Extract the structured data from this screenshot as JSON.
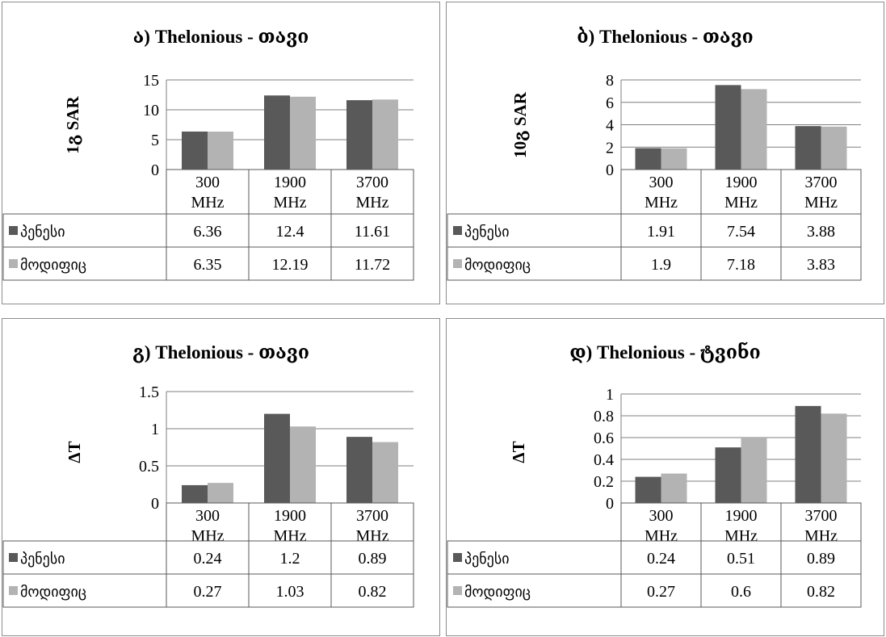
{
  "colors": {
    "series1": "#595959",
    "series2": "#b3b3b3",
    "grid": "#7f7f7f"
  },
  "chart_data": [
    {
      "type": "bar",
      "title": "ა) Thelonious - თავი",
      "ylabel": "1გ SAR",
      "ylim": [
        0,
        15
      ],
      "yticks": [
        "0",
        "5",
        "10",
        "15"
      ],
      "categories": [
        "300 MHz",
        "1900 MHz",
        "3700 MHz"
      ],
      "category_lines": [
        [
          "300",
          "MHz"
        ],
        [
          "1900",
          "MHz"
        ],
        [
          "3700",
          "MHz"
        ]
      ],
      "series": [
        {
          "name": "პენესი",
          "values": [
            6.36,
            12.4,
            11.61
          ],
          "labels": [
            "6.36",
            "12.4",
            "11.61"
          ]
        },
        {
          "name": "მოდიფიც",
          "values": [
            6.35,
            12.19,
            11.72
          ],
          "labels": [
            "6.35",
            "12.19",
            "11.72"
          ]
        }
      ],
      "grid": true
    },
    {
      "type": "bar",
      "title": "ბ) Thelonious - თავი",
      "ylabel": "10გ SAR",
      "ylim": [
        0,
        8
      ],
      "yticks": [
        "0",
        "2",
        "4",
        "6",
        "8"
      ],
      "categories": [
        "300 MHz",
        "1900 MHz",
        "3700 MHz"
      ],
      "category_lines": [
        [
          "300",
          "MHz"
        ],
        [
          "1900",
          "MHz"
        ],
        [
          "3700",
          "MHz"
        ]
      ],
      "series": [
        {
          "name": "პენესი",
          "values": [
            1.91,
            7.54,
            3.88
          ],
          "labels": [
            "1.91",
            "7.54",
            "3.88"
          ]
        },
        {
          "name": "მოდიფიც",
          "values": [
            1.9,
            7.18,
            3.83
          ],
          "labels": [
            "1.9",
            "7.18",
            "3.83"
          ]
        }
      ],
      "grid": true
    },
    {
      "type": "bar",
      "title": "გ) Thelonious  - თავი",
      "ylabel": "ΔT",
      "ylim": [
        0,
        1.5
      ],
      "yticks": [
        "0",
        "0.5",
        "1",
        "1.5"
      ],
      "categories": [
        "300 MHz",
        "1900 MHz",
        "3700 MHz"
      ],
      "category_lines": [
        [
          "300",
          "MHz"
        ],
        [
          "1900",
          "MHz"
        ],
        [
          "3700",
          "MHz"
        ]
      ],
      "series": [
        {
          "name": "პენესი",
          "values": [
            0.24,
            1.2,
            0.89
          ],
          "labels": [
            "0.24",
            "1.2",
            "0.89"
          ]
        },
        {
          "name": "მოდიფიც",
          "values": [
            0.27,
            1.03,
            0.82
          ],
          "labels": [
            "0.27",
            "1.03",
            "0.82"
          ]
        }
      ],
      "grid": true
    },
    {
      "type": "bar",
      "title": "დ) Thelonious  - ტვინი",
      "ylabel": "ΔT",
      "ylim": [
        0,
        1
      ],
      "yticks": [
        "0",
        "0.2",
        "0.4",
        "0.6",
        "0.8",
        "1"
      ],
      "categories": [
        "300 MHz",
        "1900 MHz",
        "3700 MHz"
      ],
      "category_lines": [
        [
          "300",
          "MHz"
        ],
        [
          "1900",
          "MHz"
        ],
        [
          "3700",
          "MHz"
        ]
      ],
      "series": [
        {
          "name": "პენესი",
          "values": [
            0.24,
            0.51,
            0.89
          ],
          "labels": [
            "0.24",
            "0.51",
            "0.89"
          ]
        },
        {
          "name": "მოდიფიც",
          "values": [
            0.27,
            0.6,
            0.82
          ],
          "labels": [
            "0.27",
            "0.6",
            "0.82"
          ]
        }
      ],
      "grid": true
    }
  ]
}
